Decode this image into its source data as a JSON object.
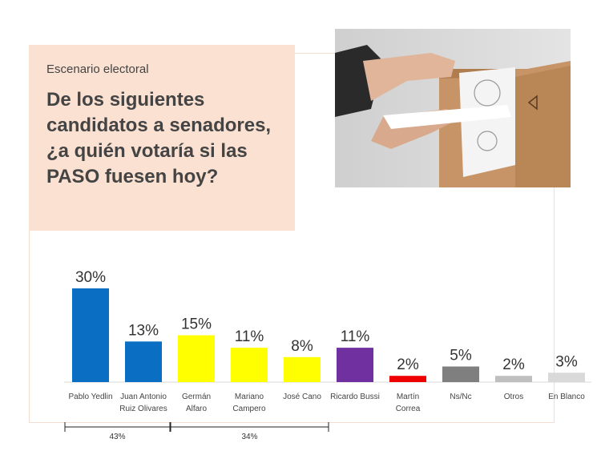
{
  "header": {
    "kicker": "Escenario electoral",
    "headline": "De los siguientes candidatos a senadores, ¿a quién votaría si las PASO fuesen hoy?"
  },
  "chart_data": {
    "type": "bar",
    "unit": "%",
    "categories": [
      [
        "Pablo Yedlin"
      ],
      [
        "Juan Antonio",
        "Ruiz Olivares"
      ],
      [
        "Germán",
        "Alfaro"
      ],
      [
        "Mariano",
        "Campero"
      ],
      [
        "José Cano"
      ],
      [
        "Ricardo Bussi"
      ],
      [
        "Martín",
        "Correa"
      ],
      [
        "Ns/Nc"
      ],
      [
        "Otros"
      ],
      [
        "En Blanco"
      ]
    ],
    "values": [
      30,
      13,
      15,
      11,
      8,
      11,
      2,
      5,
      2,
      3
    ],
    "value_labels": [
      "30%",
      "13%",
      "15%",
      "11%",
      "8%",
      "11%",
      "2%",
      "5%",
      "2%",
      "3%"
    ],
    "colors": [
      "#0a6fc2",
      "#0a6fc2",
      "#ffff00",
      "#ffff00",
      "#ffff00",
      "#7030a0",
      "#ee0000",
      "#7f7f7f",
      "#bfbfbf",
      "#d9d9d9"
    ],
    "groups": [
      {
        "label": "43%",
        "from": 0,
        "to": 1
      },
      {
        "label": "34%",
        "from": 2,
        "to": 4
      }
    ],
    "ylim": [
      0,
      30
    ]
  }
}
